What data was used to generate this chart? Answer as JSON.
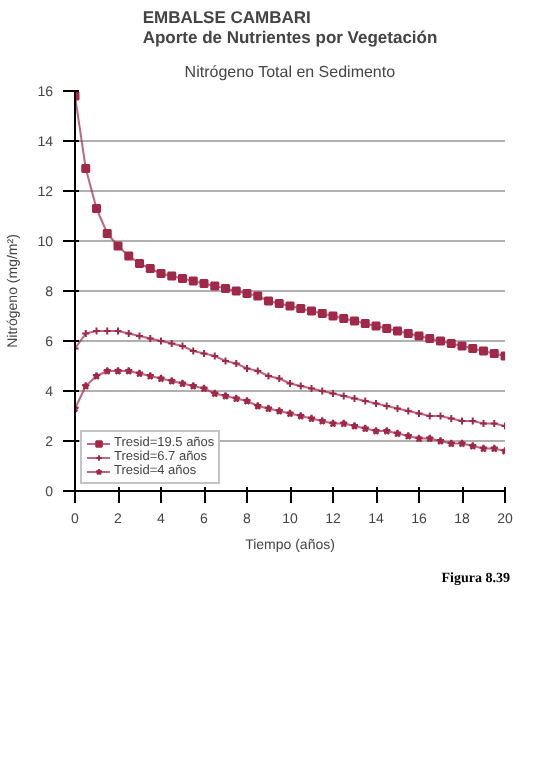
{
  "chart_data": {
    "type": "line",
    "title": "EMBALSE CAMBARI\nAporte de Nutrientes por Vegetación",
    "subtitle": "Nitrógeno Total en Sedimento",
    "xlabel": "Tiempo (años)",
    "ylabel": "Nitrógeno (mg/m²)",
    "x": [
      0,
      0.5,
      1,
      1.5,
      2,
      2.5,
      3,
      3.5,
      4,
      4.5,
      5,
      5.5,
      6,
      6.5,
      7,
      7.5,
      8,
      8.5,
      9,
      9.5,
      10,
      10.5,
      11,
      11.5,
      12,
      12.5,
      13,
      13.5,
      14,
      14.5,
      15,
      15.5,
      16,
      16.5,
      17,
      17.5,
      18,
      18.5,
      19,
      19.5,
      20
    ],
    "series": [
      {
        "name": "Tresid=19.5 años",
        "color": "#a02848",
        "marker": "square",
        "values": [
          15.8,
          12.9,
          11.3,
          10.3,
          9.8,
          9.4,
          9.1,
          8.9,
          8.7,
          8.6,
          8.5,
          8.4,
          8.3,
          8.2,
          8.1,
          8.0,
          7.9,
          7.8,
          7.6,
          7.5,
          7.4,
          7.3,
          7.2,
          7.1,
          7.0,
          6.9,
          6.8,
          6.7,
          6.6,
          6.5,
          6.4,
          6.3,
          6.2,
          6.1,
          6.0,
          5.9,
          5.8,
          5.7,
          5.6,
          5.5,
          5.4
        ]
      },
      {
        "name": "Tresid=6.7 años",
        "color": "#a02848",
        "marker": "cross",
        "values": [
          5.7,
          6.3,
          6.4,
          6.4,
          6.4,
          6.3,
          6.2,
          6.1,
          6.0,
          5.9,
          5.8,
          5.6,
          5.5,
          5.4,
          5.2,
          5.1,
          4.9,
          4.8,
          4.6,
          4.5,
          4.3,
          4.2,
          4.1,
          4.0,
          3.9,
          3.8,
          3.7,
          3.6,
          3.5,
          3.4,
          3.3,
          3.2,
          3.1,
          3.0,
          3.0,
          2.9,
          2.8,
          2.8,
          2.7,
          2.7,
          2.6
        ]
      },
      {
        "name": "Tresid=4 años",
        "color": "#a02848",
        "marker": "star",
        "values": [
          3.3,
          4.2,
          4.6,
          4.8,
          4.8,
          4.8,
          4.7,
          4.6,
          4.5,
          4.4,
          4.3,
          4.2,
          4.1,
          3.9,
          3.8,
          3.7,
          3.6,
          3.4,
          3.3,
          3.2,
          3.1,
          3.0,
          2.9,
          2.8,
          2.7,
          2.7,
          2.6,
          2.5,
          2.4,
          2.4,
          2.3,
          2.2,
          2.1,
          2.1,
          2.0,
          1.9,
          1.9,
          1.8,
          1.7,
          1.7,
          1.6
        ]
      }
    ],
    "xlim": [
      0,
      20
    ],
    "xticks": [
      0,
      2,
      4,
      6,
      8,
      10,
      12,
      14,
      16,
      18,
      20
    ],
    "ylim": [
      0,
      16
    ],
    "yticks": [
      0,
      2,
      4,
      6,
      8,
      10,
      12,
      14,
      16
    ],
    "grid": "y",
    "legend": "bottom left",
    "line_style": "solid",
    "annotations": [
      "Figura 8.39"
    ]
  }
}
